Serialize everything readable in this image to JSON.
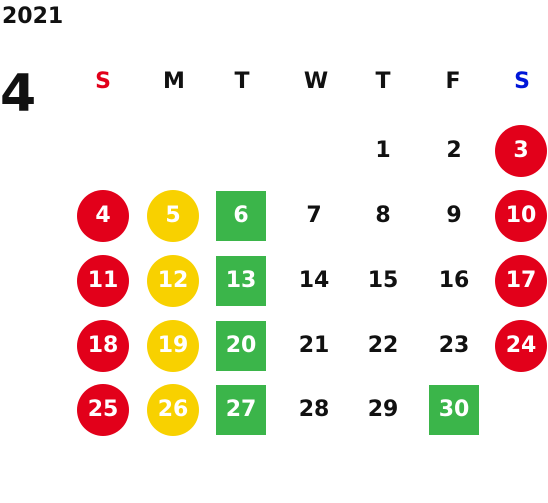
{
  "calendar": {
    "year": "2021",
    "month": "4",
    "weekdays": [
      {
        "label": "S",
        "color": "#e2001a"
      },
      {
        "label": "M",
        "color": "#111111"
      },
      {
        "label": "T",
        "color": "#111111"
      },
      {
        "label": "W",
        "color": "#111111"
      },
      {
        "label": "T",
        "color": "#111111"
      },
      {
        "label": "F",
        "color": "#111111"
      },
      {
        "label": "S",
        "color": "#0016d9"
      }
    ],
    "weeks": [
      [
        {
          "day": "",
          "mark": "none"
        },
        {
          "day": "",
          "mark": "none"
        },
        {
          "day": "",
          "mark": "none"
        },
        {
          "day": "",
          "mark": "none"
        },
        {
          "day": "1",
          "mark": "none"
        },
        {
          "day": "2",
          "mark": "none"
        },
        {
          "day": "3",
          "mark": "red-circle"
        }
      ],
      [
        {
          "day": "4",
          "mark": "red-circle"
        },
        {
          "day": "5",
          "mark": "yellow-circle"
        },
        {
          "day": "6",
          "mark": "green-square"
        },
        {
          "day": "7",
          "mark": "none"
        },
        {
          "day": "8",
          "mark": "none"
        },
        {
          "day": "9",
          "mark": "none"
        },
        {
          "day": "10",
          "mark": "red-circle"
        }
      ],
      [
        {
          "day": "11",
          "mark": "red-circle"
        },
        {
          "day": "12",
          "mark": "yellow-circle"
        },
        {
          "day": "13",
          "mark": "green-square"
        },
        {
          "day": "14",
          "mark": "none"
        },
        {
          "day": "15",
          "mark": "none"
        },
        {
          "day": "16",
          "mark": "none"
        },
        {
          "day": "17",
          "mark": "red-circle"
        }
      ],
      [
        {
          "day": "18",
          "mark": "red-circle"
        },
        {
          "day": "19",
          "mark": "yellow-circle"
        },
        {
          "day": "20",
          "mark": "green-square"
        },
        {
          "day": "21",
          "mark": "none"
        },
        {
          "day": "22",
          "mark": "none"
        },
        {
          "day": "23",
          "mark": "none"
        },
        {
          "day": "24",
          "mark": "red-circle"
        }
      ],
      [
        {
          "day": "25",
          "mark": "red-circle"
        },
        {
          "day": "26",
          "mark": "yellow-circle"
        },
        {
          "day": "27",
          "mark": "green-square"
        },
        {
          "day": "28",
          "mark": "none"
        },
        {
          "day": "29",
          "mark": "none"
        },
        {
          "day": "30",
          "mark": "green-square"
        },
        {
          "day": "",
          "mark": "none"
        }
      ]
    ],
    "colors": {
      "red": "#e2001a",
      "yellow": "#f8d100",
      "green": "#3bb54a",
      "blue": "#0016d9"
    }
  }
}
